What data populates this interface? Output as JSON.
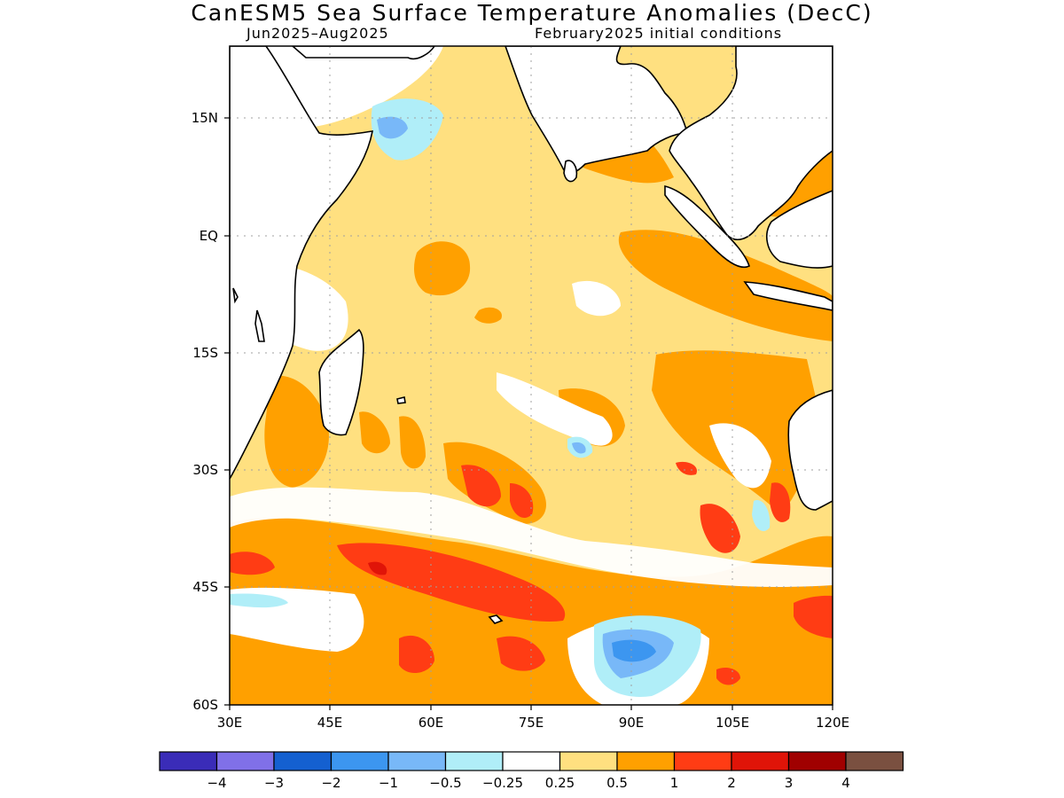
{
  "title": "CanESM5 Sea Surface Temperature Anomalies (DecC)",
  "subtitle_left": "Jun2025–Aug2025",
  "subtitle_right": "February2025 initial conditions",
  "lat_ticks": [
    "15N",
    "EQ",
    "15S",
    "30S",
    "45S",
    "60S"
  ],
  "lon_ticks": [
    "30E",
    "45E",
    "60E",
    "75E",
    "90E",
    "105E",
    "120E"
  ],
  "legend": {
    "colors": [
      "#3a2cb8",
      "#8070e8",
      "#1460d0",
      "#3c96f0",
      "#78b8f8",
      "#b0eef8",
      "#ffffff",
      "#ffe080",
      "#ffa000",
      "#ff3c14",
      "#e01408",
      "#a00000",
      "#7a5040"
    ],
    "labels": [
      "−4",
      "−3",
      "−2",
      "−1",
      "−0.5",
      "−0.25",
      "0.25",
      "0.5",
      "1",
      "2",
      "3",
      "4"
    ]
  }
}
